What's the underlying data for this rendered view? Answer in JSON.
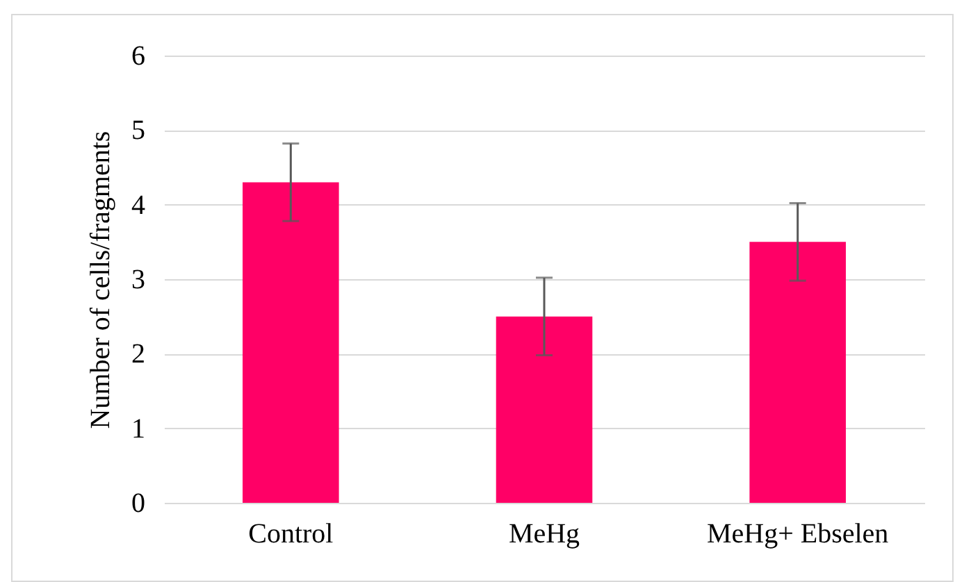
{
  "chart_data": {
    "type": "bar",
    "ylabel": "Number of cells/fragments",
    "categories": [
      "Control",
      "MeHg",
      "MeHg+ Ebselen"
    ],
    "values": [
      4.3,
      2.5,
      3.5
    ],
    "errors": [
      0.52,
      0.52,
      0.52
    ],
    "color": "#ff0066",
    "ylim": [
      0,
      6
    ],
    "yticks": [
      0,
      1,
      2,
      3,
      4,
      5,
      6
    ],
    "grid": "y"
  }
}
